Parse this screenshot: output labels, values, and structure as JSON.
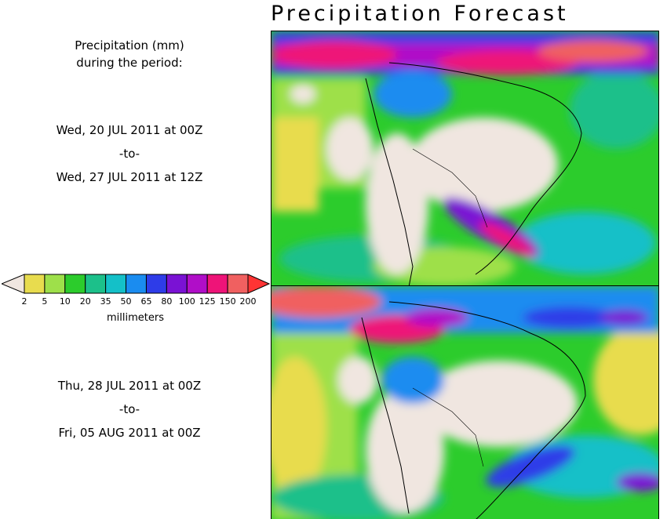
{
  "title": "Precipitation Forecast",
  "intro": {
    "line1": "Precipitation (mm)",
    "line2": "during the period:"
  },
  "period1": {
    "start": "Wed, 20 JUL 2011 at 00Z",
    "to": "-to-",
    "end": "Wed, 27 JUL 2011 at 12Z"
  },
  "period2": {
    "start": "Thu, 28 JUL 2011 at 00Z",
    "to": "-to-",
    "end": "Fri, 05 AUG 2011 at 00Z"
  },
  "legend": {
    "unit": "millimeters",
    "colors": [
      "#e8dc4e",
      "#9ee04a",
      "#2ccc2c",
      "#1cc08a",
      "#14c0c8",
      "#1a8cf0",
      "#2e3ce8",
      "#7a12d4",
      "#b00ec8",
      "#ee1478",
      "#f06060"
    ],
    "under_color": "#f0e6e0",
    "over_color": "#ff3434",
    "labels": [
      "2",
      "5",
      "10",
      "20",
      "35",
      "50",
      "65",
      "80",
      "100",
      "125",
      "150",
      "200"
    ]
  }
}
